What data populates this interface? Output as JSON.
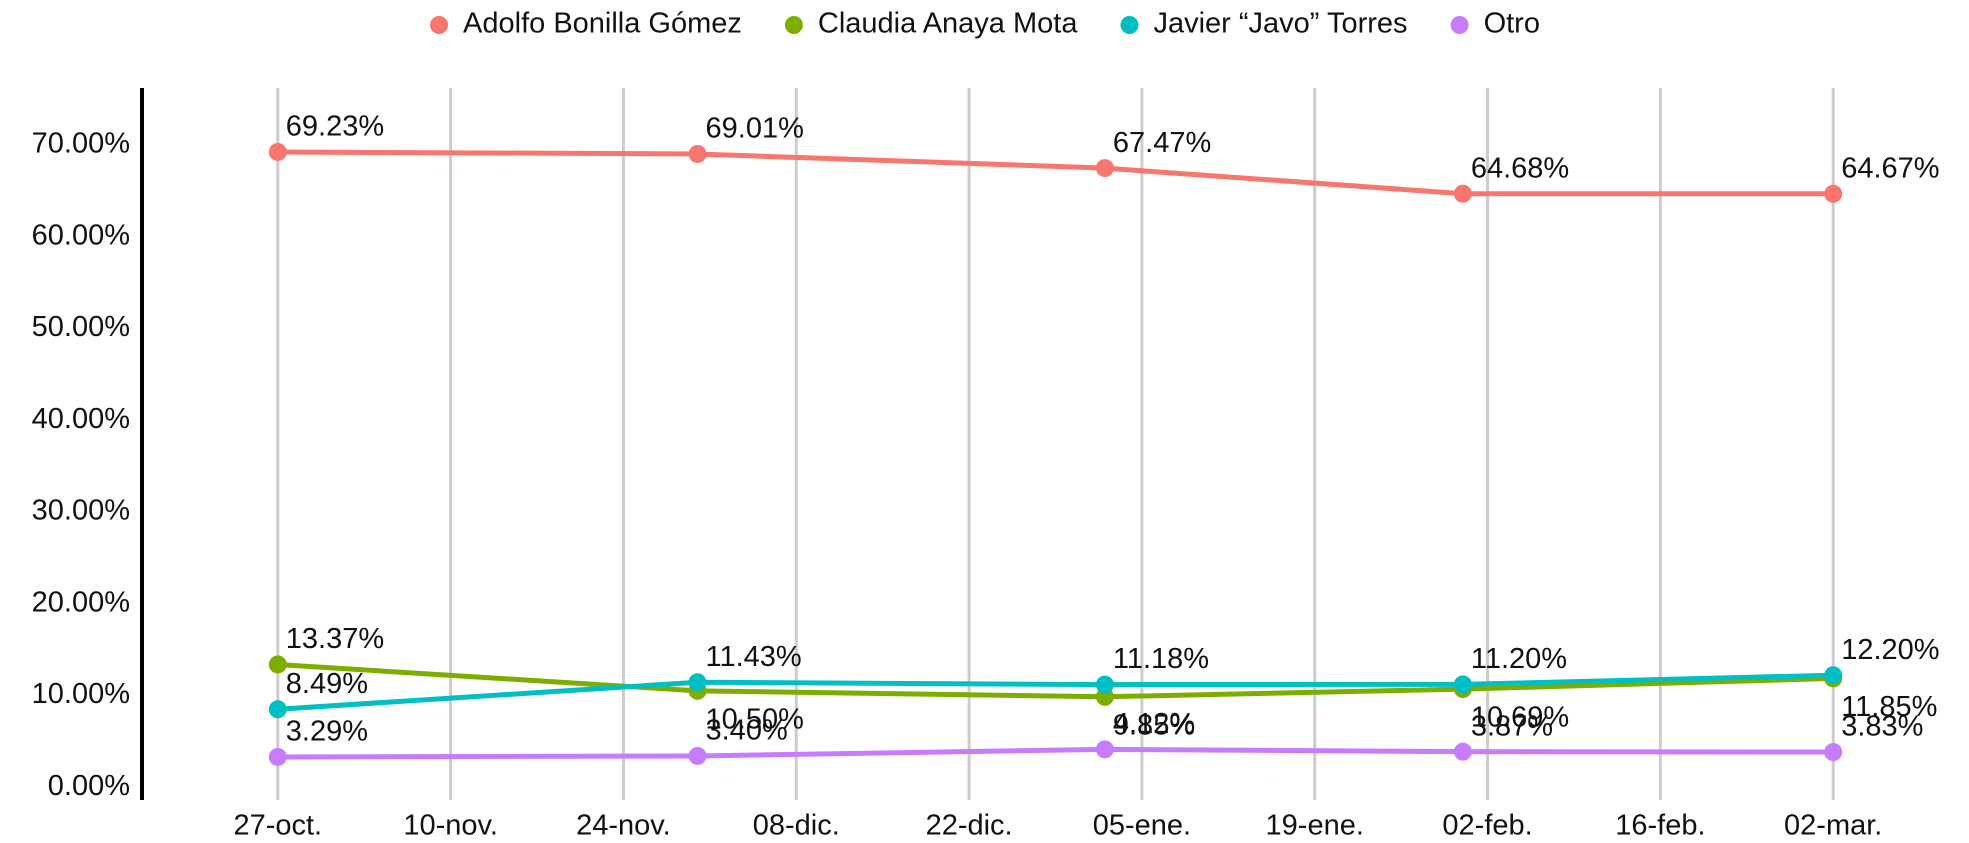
{
  "chart_data": {
    "type": "line",
    "x": [
      0,
      34,
      67,
      96,
      126
    ],
    "xlim": [
      -11,
      137
    ],
    "xticks": [
      {
        "value": 0,
        "label": "27-oct."
      },
      {
        "value": 14,
        "label": "10-nov."
      },
      {
        "value": 28,
        "label": "24-nov."
      },
      {
        "value": 42,
        "label": "08-dic."
      },
      {
        "value": 56,
        "label": "22-dic."
      },
      {
        "value": 70,
        "label": "05-ene."
      },
      {
        "value": 84,
        "label": "19-ene."
      },
      {
        "value": 98,
        "label": "02-feb."
      },
      {
        "value": 112,
        "label": "16-feb."
      },
      {
        "value": 126,
        "label": "02-mar."
      }
    ],
    "ylim": [
      -1.4,
      76.2
    ],
    "yticks": [
      {
        "value": 0,
        "label": "0.00%"
      },
      {
        "value": 10,
        "label": "10.00%"
      },
      {
        "value": 20,
        "label": "20.00%"
      },
      {
        "value": 30,
        "label": "30.00%"
      },
      {
        "value": 40,
        "label": "40.00%"
      },
      {
        "value": 50,
        "label": "50.00%"
      },
      {
        "value": 60,
        "label": "60.00%"
      },
      {
        "value": 70,
        "label": "70.00%"
      }
    ],
    "grid": true,
    "legend": "top",
    "series": [
      {
        "name": "Adolfo Bonilla Gómez",
        "color": "#F8766D",
        "values": [
          69.23,
          69.01,
          67.47,
          64.68,
          64.67
        ],
        "value_labels": [
          "69.23%",
          "69.01%",
          "67.47%",
          "64.68%",
          "64.67%"
        ]
      },
      {
        "name": "Claudia Anaya Mota",
        "color": "#7CAE00",
        "values": [
          13.37,
          10.5,
          9.85,
          10.69,
          11.85
        ],
        "value_labels": [
          "13.37%",
          "10.50%",
          "9.85%",
          "10.69%",
          "11.85%"
        ]
      },
      {
        "name": "Javier “Javo” Torres",
        "color": "#00BFC4",
        "values": [
          8.49,
          11.43,
          11.18,
          11.2,
          12.2
        ],
        "value_labels": [
          "8.49%",
          "11.43%",
          "11.18%",
          "11.20%",
          "12.20%"
        ]
      },
      {
        "name": "Otro",
        "color": "#C77CFF",
        "values": [
          3.29,
          3.4,
          4.12,
          3.87,
          3.83
        ],
        "value_labels": [
          "3.29%",
          "3.40%",
          "4.12%",
          "3.87%",
          "3.83%"
        ]
      }
    ]
  }
}
